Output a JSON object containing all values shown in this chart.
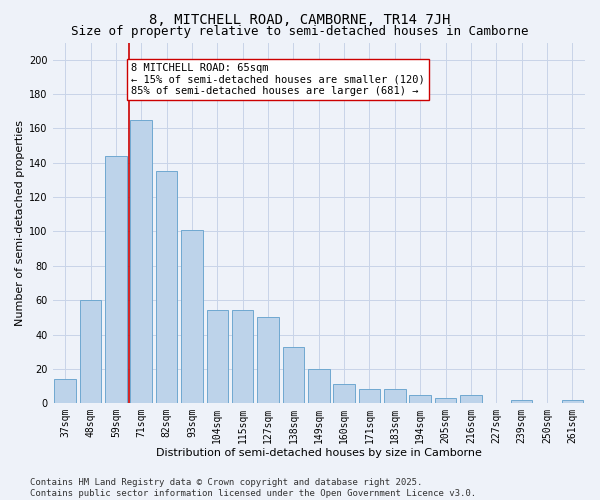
{
  "title1": "8, MITCHELL ROAD, CAMBORNE, TR14 7JH",
  "title2": "Size of property relative to semi-detached houses in Camborne",
  "xlabel": "Distribution of semi-detached houses by size in Camborne",
  "ylabel": "Number of semi-detached properties",
  "categories": [
    "37sqm",
    "48sqm",
    "59sqm",
    "71sqm",
    "82sqm",
    "93sqm",
    "104sqm",
    "115sqm",
    "127sqm",
    "138sqm",
    "149sqm",
    "160sqm",
    "171sqm",
    "183sqm",
    "194sqm",
    "205sqm",
    "216sqm",
    "227sqm",
    "239sqm",
    "250sqm",
    "261sqm"
  ],
  "values": [
    14,
    60,
    144,
    165,
    135,
    101,
    54,
    54,
    50,
    33,
    20,
    11,
    8,
    8,
    5,
    3,
    5,
    0,
    2,
    0,
    2
  ],
  "bar_color": "#bdd3ea",
  "bar_edge_color": "#6fa8d0",
  "grid_color": "#c8d4e8",
  "background_color": "#eef2f9",
  "vline_color": "#cc0000",
  "annotation_text": "8 MITCHELL ROAD: 65sqm\n← 15% of semi-detached houses are smaller (120)\n85% of semi-detached houses are larger (681) →",
  "annotation_box_color": "#ffffff",
  "annotation_box_edge": "#cc0000",
  "ylim": [
    0,
    210
  ],
  "yticks": [
    0,
    20,
    40,
    60,
    80,
    100,
    120,
    140,
    160,
    180,
    200
  ],
  "footer": "Contains HM Land Registry data © Crown copyright and database right 2025.\nContains public sector information licensed under the Open Government Licence v3.0.",
  "title1_fontsize": 10,
  "title2_fontsize": 9,
  "xlabel_fontsize": 8,
  "ylabel_fontsize": 8,
  "tick_fontsize": 7,
  "annotation_fontsize": 7.5,
  "footer_fontsize": 6.5
}
